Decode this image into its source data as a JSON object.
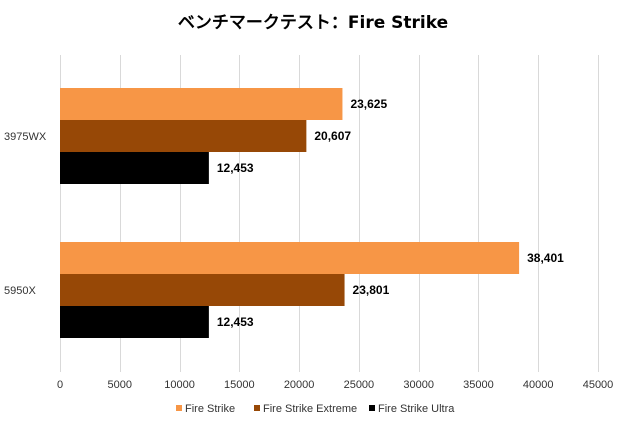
{
  "chart_data": {
    "type": "bar",
    "orientation": "horizontal",
    "title": "ベンチマークテスト：Fire Strike",
    "categories": [
      "3975WX",
      "5950X"
    ],
    "series": [
      {
        "name": "Fire Strike",
        "color": "#F79646",
        "values": [
          23625,
          38401
        ],
        "labels": [
          "23,625",
          "38,401"
        ]
      },
      {
        "name": "Fire Strike Extreme",
        "color": "#974806",
        "values": [
          20607,
          23801
        ],
        "labels": [
          "20,607",
          "23,801"
        ]
      },
      {
        "name": "Fire Strike Ultra",
        "color": "#000000",
        "values": [
          12453,
          12453
        ],
        "labels": [
          "12,453",
          "12,453"
        ]
      }
    ],
    "xlim": [
      0,
      45000
    ],
    "xticks": [
      0,
      5000,
      10000,
      15000,
      20000,
      25000,
      30000,
      35000,
      40000,
      45000
    ],
    "xtick_labels": [
      "0",
      "5000",
      "10000",
      "15000",
      "20000",
      "25000",
      "30000",
      "35000",
      "40000",
      "45000"
    ],
    "grid": true,
    "legend_position": "bottom"
  }
}
